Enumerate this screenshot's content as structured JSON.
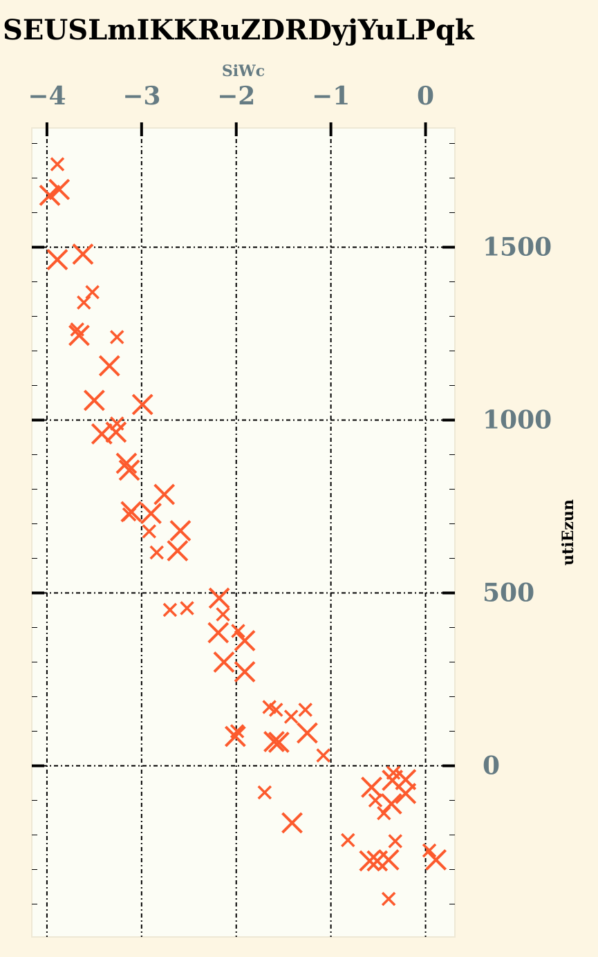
{
  "chart_data": {
    "type": "scatter",
    "title": "SEUSLmIKKRuZDRDyjYuLPqk",
    "xlabel": "SiWc",
    "ylabel": "utiEzun",
    "xlim": [
      -4.16,
      0.31
    ],
    "ylim": [
      -495,
      1845
    ],
    "x_ticks": [
      -4,
      -3,
      -2,
      -1,
      0
    ],
    "x_tick_labels": [
      "−4",
      "−3",
      "−2",
      "−1",
      "0"
    ],
    "y_ticks": [
      0,
      500,
      1000,
      1500
    ],
    "y_tick_labels": [
      "0",
      "500",
      "1000",
      "1500"
    ],
    "x_axis_position": "top",
    "y_axis_position": "right",
    "grid": true,
    "legend": "none",
    "colors": {
      "marker": "#fc5a2d",
      "figure_bg": "#fdf6e3",
      "plot_bg": "#fcfdf5",
      "tick_label": "#657b83",
      "grid": "#000000"
    },
    "series": [
      {
        "marker": "x",
        "points": [
          {
            "x": -3.89,
            "y": 1740,
            "s": "small"
          },
          {
            "x": -3.87,
            "y": 1667,
            "s": "large"
          },
          {
            "x": -3.97,
            "y": 1650,
            "s": "large"
          },
          {
            "x": -3.62,
            "y": 1480,
            "s": "large"
          },
          {
            "x": -3.89,
            "y": 1464,
            "s": "large"
          },
          {
            "x": -3.52,
            "y": 1370,
            "s": "small"
          },
          {
            "x": -3.61,
            "y": 1340,
            "s": "small"
          },
          {
            "x": -3.68,
            "y": 1262,
            "s": "small"
          },
          {
            "x": -3.66,
            "y": 1245,
            "s": "large"
          },
          {
            "x": -3.26,
            "y": 1240,
            "s": "small"
          },
          {
            "x": -3.34,
            "y": 1157,
            "s": "large"
          },
          {
            "x": -3.5,
            "y": 1057,
            "s": "large"
          },
          {
            "x": -2.99,
            "y": 1045,
            "s": "large"
          },
          {
            "x": -3.26,
            "y": 990,
            "s": "small"
          },
          {
            "x": -3.27,
            "y": 965,
            "s": "large"
          },
          {
            "x": -3.42,
            "y": 960,
            "s": "large"
          },
          {
            "x": -3.16,
            "y": 875,
            "s": "large"
          },
          {
            "x": -3.13,
            "y": 855,
            "s": "large"
          },
          {
            "x": -2.76,
            "y": 785,
            "s": "large"
          },
          {
            "x": -3.11,
            "y": 735,
            "s": "large"
          },
          {
            "x": -3.13,
            "y": 727,
            "s": "small"
          },
          {
            "x": -2.9,
            "y": 730,
            "s": "large"
          },
          {
            "x": -2.59,
            "y": 680,
            "s": "large"
          },
          {
            "x": -2.92,
            "y": 678,
            "s": "small"
          },
          {
            "x": -2.84,
            "y": 617,
            "s": "small"
          },
          {
            "x": -2.62,
            "y": 622,
            "s": "large"
          },
          {
            "x": -2.18,
            "y": 485,
            "s": "large"
          },
          {
            "x": -2.52,
            "y": 456,
            "s": "small"
          },
          {
            "x": -2.7,
            "y": 451,
            "s": "small"
          },
          {
            "x": -2.14,
            "y": 438,
            "s": "small"
          },
          {
            "x": -1.98,
            "y": 390,
            "s": "small"
          },
          {
            "x": -2.19,
            "y": 385,
            "s": "large"
          },
          {
            "x": -1.91,
            "y": 362,
            "s": "large"
          },
          {
            "x": -2.13,
            "y": 300,
            "s": "large"
          },
          {
            "x": -1.91,
            "y": 272,
            "s": "large"
          },
          {
            "x": -1.65,
            "y": 170,
            "s": "small"
          },
          {
            "x": -1.58,
            "y": 162,
            "s": "small"
          },
          {
            "x": -1.27,
            "y": 162,
            "s": "small"
          },
          {
            "x": -1.42,
            "y": 142,
            "s": "small"
          },
          {
            "x": -1.99,
            "y": 100,
            "s": "small"
          },
          {
            "x": -2.01,
            "y": 85,
            "s": "large"
          },
          {
            "x": -1.25,
            "y": 95,
            "s": "large"
          },
          {
            "x": -1.6,
            "y": 70,
            "s": "large"
          },
          {
            "x": -1.55,
            "y": 68,
            "s": "large"
          },
          {
            "x": -1.08,
            "y": 30,
            "s": "small"
          },
          {
            "x": -0.34,
            "y": -20,
            "s": "small"
          },
          {
            "x": -0.35,
            "y": -42,
            "s": "large"
          },
          {
            "x": -0.21,
            "y": -40,
            "s": "large"
          },
          {
            "x": -0.57,
            "y": -62,
            "s": "large"
          },
          {
            "x": -0.21,
            "y": -80,
            "s": "large"
          },
          {
            "x": -1.7,
            "y": -77,
            "s": "small"
          },
          {
            "x": -0.53,
            "y": -100,
            "s": "small"
          },
          {
            "x": -0.36,
            "y": -110,
            "s": "large"
          },
          {
            "x": -0.44,
            "y": -137,
            "s": "small"
          },
          {
            "x": -1.41,
            "y": -165,
            "s": "large"
          },
          {
            "x": -0.82,
            "y": -215,
            "s": "small"
          },
          {
            "x": -0.32,
            "y": -218,
            "s": "small"
          },
          {
            "x": 0.04,
            "y": -245,
            "s": "small"
          },
          {
            "x": 0.11,
            "y": -272,
            "s": "large"
          },
          {
            "x": -0.59,
            "y": -275,
            "s": "large"
          },
          {
            "x": -0.51,
            "y": -275,
            "s": "large"
          },
          {
            "x": -0.39,
            "y": -272,
            "s": "large"
          },
          {
            "x": -0.39,
            "y": -385,
            "s": "small"
          }
        ]
      }
    ]
  }
}
